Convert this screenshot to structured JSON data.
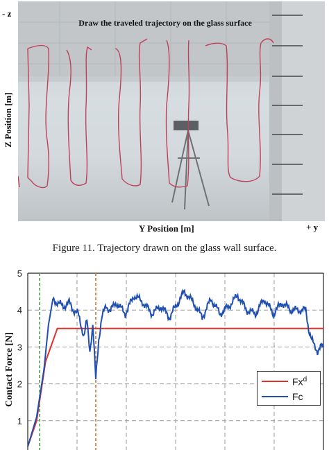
{
  "photo": {
    "title": "Draw the traveled trajectory on the glass surface",
    "z_axis_label": "Z Position [m]",
    "y_axis_label": "Y Position [m]",
    "z_corner_label": "- z",
    "y_corner_label": "+ y",
    "trajectory_color": "#c0405a"
  },
  "caption": "Figure 11. Trajectory drawn on the glass wall surface.",
  "chart_data": {
    "type": "line",
    "ylabel": "Contact Force [N]",
    "ylim": [
      0,
      5
    ],
    "yticks": [
      "1",
      "2",
      "3",
      "4",
      "5"
    ],
    "grid": true,
    "legend_position": "right",
    "series": [
      {
        "name": "Fx",
        "name_superscript": "d",
        "color": "#e0302a",
        "t": [
          0.0,
          0.03,
          0.06,
          0.1,
          0.5,
          1.0
        ],
        "values": [
          0.3,
          1.0,
          2.6,
          3.5,
          3.5,
          3.5
        ]
      },
      {
        "name": "Fc",
        "color": "#1f4fb0",
        "t": [
          0.0,
          0.03,
          0.055,
          0.07,
          0.085,
          0.1,
          0.12,
          0.14,
          0.155,
          0.17,
          0.19,
          0.2,
          0.21,
          0.22,
          0.23,
          0.24,
          0.25,
          0.265,
          0.28,
          0.3,
          0.33,
          0.36,
          0.39,
          0.42,
          0.45,
          0.48,
          0.5,
          0.53,
          0.56,
          0.59,
          0.62,
          0.65,
          0.68,
          0.71,
          0.74,
          0.77,
          0.8,
          0.83,
          0.86,
          0.89,
          0.92,
          0.94,
          0.95,
          0.96,
          0.97,
          0.98,
          0.99,
          1.0
        ],
        "values": [
          0.3,
          1.1,
          2.4,
          3.6,
          4.3,
          4.2,
          4.1,
          4.2,
          4.0,
          3.9,
          3.3,
          3.7,
          2.9,
          3.6,
          2.1,
          3.2,
          3.8,
          4.1,
          4.0,
          4.2,
          3.9,
          4.4,
          4.2,
          3.9,
          4.1,
          3.8,
          4.1,
          4.5,
          4.2,
          3.8,
          4.3,
          3.9,
          4.1,
          4.4,
          4.0,
          3.9,
          4.3,
          3.9,
          4.2,
          4.0,
          4.0,
          4.0,
          3.5,
          3.2,
          3.0,
          2.9,
          3.0,
          3.0
        ]
      }
    ],
    "vlines": [
      {
        "t": 0.04,
        "color": "#3a9a3a"
      },
      {
        "t": 0.23,
        "color": "#c86a2a"
      }
    ]
  }
}
